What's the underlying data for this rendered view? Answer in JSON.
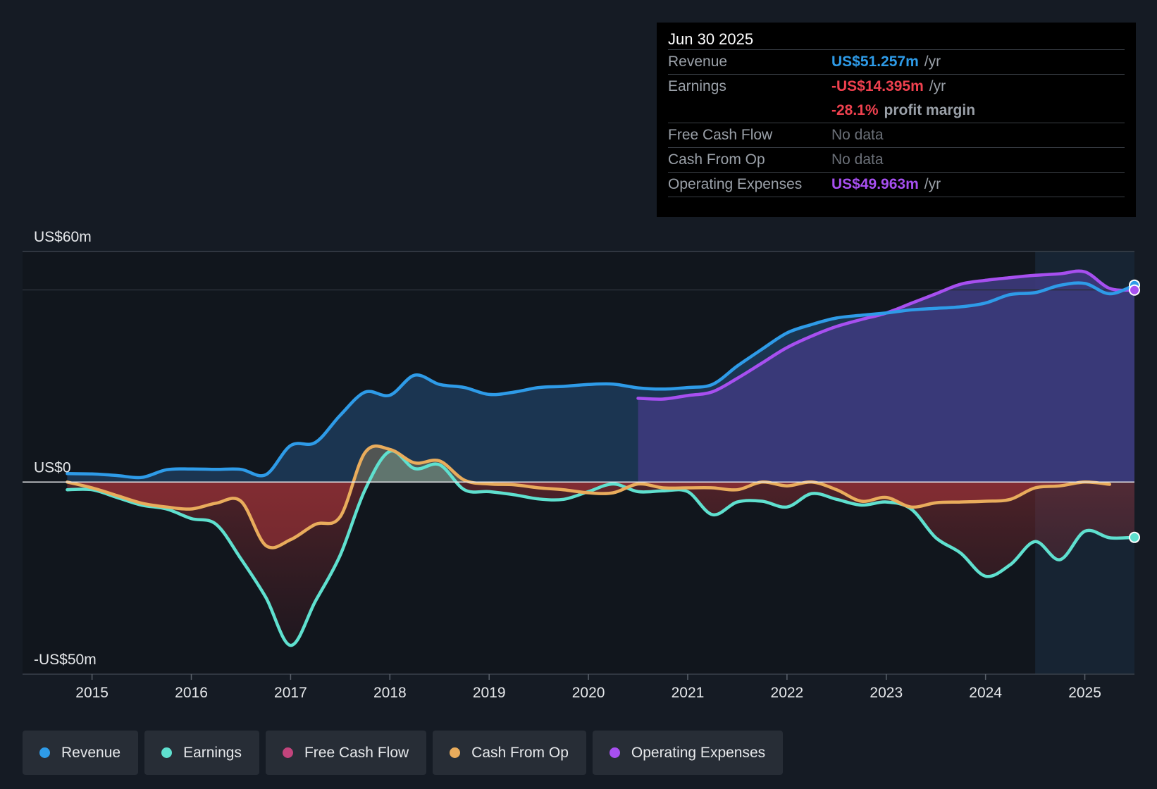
{
  "tooltip": {
    "date": "Jun 30 2025",
    "rows": [
      {
        "label": "Revenue",
        "value": "US$51.257m",
        "unit": "/yr",
        "color": "#2e9be8"
      },
      {
        "label": "Earnings",
        "value": "-US$14.395m",
        "unit": "/yr",
        "color": "#f0414f"
      },
      {
        "label": "",
        "value": "-28.1%",
        "unit": "profit margin",
        "color": "#f0414f"
      },
      {
        "label": "Free Cash Flow",
        "value": "No data",
        "unit": "",
        "color": "#6b7078"
      },
      {
        "label": "Cash From Op",
        "value": "No data",
        "unit": "",
        "color": "#6b7078"
      },
      {
        "label": "Operating Expenses",
        "value": "US$49.963m",
        "unit": "/yr",
        "color": "#a74ff0"
      }
    ]
  },
  "legend": [
    {
      "label": "Revenue",
      "color": "#2e9be8"
    },
    {
      "label": "Earnings",
      "color": "#5fe0cf"
    },
    {
      "label": "Free Cash Flow",
      "color": "#c2447c"
    },
    {
      "label": "Cash From Op",
      "color": "#e9ac5c"
    },
    {
      "label": "Operating Expenses",
      "color": "#a74ff0"
    }
  ],
  "chart_data": {
    "type": "line",
    "title": "",
    "xlabel": "",
    "ylabel": "",
    "ylim": [
      -50,
      60
    ],
    "y_tick_labels": [
      {
        "value": 60,
        "label": "US$60m"
      },
      {
        "value": 0,
        "label": "US$0"
      },
      {
        "value": -50,
        "label": "-US$50m"
      }
    ],
    "x_ticks": [
      2015,
      2016,
      2017,
      2018,
      2019,
      2020,
      2021,
      2022,
      2023,
      2024,
      2025
    ],
    "x_range": [
      2014.3,
      2025.5
    ],
    "highlight_start": 2024.5,
    "series": [
      {
        "name": "Revenue",
        "color": "#2e9be8",
        "x": [
          2014.75,
          2015.0,
          2015.25,
          2015.5,
          2015.75,
          2016.0,
          2016.25,
          2016.5,
          2016.75,
          2017.0,
          2017.25,
          2017.5,
          2017.75,
          2018.0,
          2018.25,
          2018.5,
          2018.75,
          2019.0,
          2019.25,
          2019.5,
          2019.75,
          2020.0,
          2020.25,
          2020.5,
          2020.75,
          2021.0,
          2021.25,
          2021.5,
          2021.75,
          2022.0,
          2022.25,
          2022.5,
          2022.75,
          2023.0,
          2023.25,
          2023.5,
          2023.75,
          2024.0,
          2024.25,
          2024.5,
          2024.75,
          2025.0,
          2025.25,
          2025.5
        ],
        "y": [
          2.2,
          2.1,
          1.7,
          1.2,
          3.2,
          3.4,
          3.3,
          3.3,
          1.9,
          9.5,
          10.3,
          17.4,
          23.4,
          22.6,
          27.8,
          25.4,
          24.6,
          22.8,
          23.4,
          24.6,
          24.9,
          25.4,
          25.5,
          24.5,
          24.2,
          24.6,
          25.4,
          30.2,
          34.6,
          38.8,
          41.0,
          42.7,
          43.4,
          44.0,
          44.8,
          45.2,
          45.6,
          46.6,
          48.8,
          49.3,
          51.2,
          51.7,
          49.0,
          51.257
        ]
      },
      {
        "name": "Earnings",
        "color": "#5fe0cf",
        "x": [
          2014.75,
          2015.0,
          2015.25,
          2015.5,
          2015.75,
          2016.0,
          2016.25,
          2016.5,
          2016.75,
          2017.0,
          2017.25,
          2017.5,
          2017.75,
          2018.0,
          2018.25,
          2018.5,
          2018.75,
          2019.0,
          2019.25,
          2019.5,
          2019.75,
          2020.0,
          2020.25,
          2020.5,
          2020.75,
          2021.0,
          2021.25,
          2021.5,
          2021.75,
          2022.0,
          2022.25,
          2022.5,
          2022.75,
          2023.0,
          2023.25,
          2023.5,
          2023.75,
          2024.0,
          2024.25,
          2024.5,
          2024.75,
          2025.0,
          2025.25,
          2025.5
        ],
        "y": [
          -2,
          -2,
          -4,
          -6,
          -7,
          -9.5,
          -11,
          -20,
          -30,
          -42.5,
          -31,
          -19,
          -2,
          8,
          3.5,
          4.5,
          -2,
          -2.5,
          -3.3,
          -4.4,
          -4.5,
          -2.5,
          -0.5,
          -2.5,
          -2.3,
          -2.5,
          -8.5,
          -5.2,
          -5,
          -6.5,
          -3,
          -4.5,
          -6,
          -5.2,
          -7,
          -14.5,
          -18.5,
          -24.5,
          -21.5,
          -15.5,
          -20.2,
          -12.8,
          -14.5,
          -14.395
        ]
      },
      {
        "name": "Cash From Op",
        "color": "#e9ac5c",
        "x": [
          2014.75,
          2015.0,
          2015.25,
          2015.5,
          2015.75,
          2016.0,
          2016.25,
          2016.5,
          2016.75,
          2017.0,
          2017.25,
          2017.5,
          2017.75,
          2018.0,
          2018.25,
          2018.5,
          2018.75,
          2019.0,
          2019.25,
          2019.5,
          2019.75,
          2020.0,
          2020.25,
          2020.5,
          2020.75,
          2021.0,
          2021.25,
          2021.5,
          2021.75,
          2022.0,
          2022.25,
          2022.5,
          2022.75,
          2023.0,
          2023.25,
          2023.5,
          2023.75,
          2024.0,
          2024.25,
          2024.5,
          2024.75,
          2025.0,
          2025.25
        ],
        "y": [
          0,
          -1.5,
          -3.5,
          -5.5,
          -6.5,
          -7,
          -5.5,
          -5,
          -16.5,
          -15,
          -11,
          -9,
          7.7,
          8.5,
          5,
          5.5,
          0.5,
          -0.5,
          -0.7,
          -1.5,
          -2.0,
          -2.8,
          -2.8,
          -0.5,
          -1.5,
          -1.5,
          -1.5,
          -2,
          0,
          -1,
          0,
          -2,
          -5,
          -4,
          -6.5,
          -5.4,
          -5.2,
          -5.0,
          -4.5,
          -1.5,
          -1.0,
          0,
          -0.6
        ]
      },
      {
        "name": "Operating Expenses",
        "color": "#a74ff0",
        "x": [
          2020.5,
          2020.75,
          2021.0,
          2021.25,
          2021.5,
          2021.75,
          2022.0,
          2022.25,
          2022.5,
          2022.75,
          2023.0,
          2023.25,
          2023.5,
          2023.75,
          2024.0,
          2024.25,
          2024.5,
          2024.75,
          2025.0,
          2025.25,
          2025.5
        ],
        "y": [
          21.8,
          21.6,
          22.5,
          23.5,
          27,
          31,
          35,
          38,
          40.5,
          42.3,
          44,
          46.5,
          49,
          51.5,
          52.5,
          53.2,
          53.8,
          54.2,
          54.7,
          50.4,
          49.963
        ]
      }
    ]
  }
}
